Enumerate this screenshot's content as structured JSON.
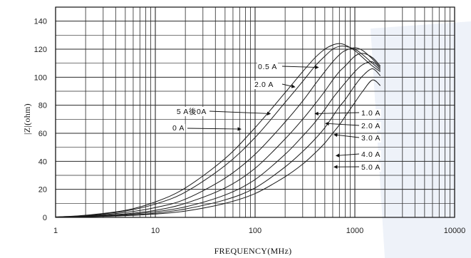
{
  "chart_data": {
    "type": "line",
    "title": "",
    "xlabel": "FREQUENCY(MHz)",
    "ylabel": "|Z|(ohm)",
    "xscale": "log",
    "xlim": [
      1,
      10000
    ],
    "ylim": [
      0,
      150
    ],
    "xticks": [
      1,
      10,
      100,
      1000,
      10000
    ],
    "xtick_labels": [
      "1",
      "10",
      "100",
      "1000",
      "10000"
    ],
    "yticks": [
      0,
      20,
      40,
      60,
      80,
      100,
      120,
      140
    ],
    "ytick_labels": [
      "0",
      "20",
      "40",
      "60",
      "80",
      "100",
      "120",
      "140"
    ],
    "grid": true,
    "legend": "none",
    "colors": {
      "line": "#1a1a1a",
      "grid": "#2a2a2a",
      "background": "#ffffff",
      "watermark": "#e8eef8"
    },
    "series": [
      {
        "name": "0 A",
        "x": [
          1,
          2,
          5,
          10,
          20,
          50,
          100,
          200,
          300,
          400,
          500,
          600,
          700,
          800,
          1000,
          1200,
          1500,
          1800
        ],
        "y": [
          0.3,
          1.5,
          5,
          11,
          21,
          42,
          64,
          89,
          104,
          114,
          120,
          123,
          124,
          123,
          119,
          114,
          108,
          104
        ]
      },
      {
        "name": "5 A後0A",
        "x": [
          1,
          2,
          5,
          10,
          20,
          50,
          100,
          200,
          300,
          400,
          500,
          600,
          700,
          800,
          1000,
          1200,
          1500,
          1800
        ],
        "y": [
          0.3,
          1.3,
          4.5,
          9.5,
          18,
          37,
          57,
          82,
          97,
          108,
          115,
          120,
          122,
          122,
          120,
          116,
          110,
          105
        ]
      },
      {
        "name": "1.0 A",
        "x": [
          1,
          2,
          5,
          10,
          20,
          50,
          100,
          200,
          300,
          400,
          500,
          600,
          700,
          800,
          1000,
          1200,
          1500,
          1800
        ],
        "y": [
          0.2,
          1,
          3.5,
          7,
          13,
          28,
          45,
          68,
          83,
          95,
          104,
          111,
          116,
          119,
          121,
          119,
          113,
          107
        ]
      },
      {
        "name": "2.0 A",
        "x": [
          1,
          2,
          5,
          10,
          20,
          50,
          100,
          200,
          300,
          400,
          500,
          600,
          700,
          800,
          1000,
          1200,
          1500,
          1800
        ],
        "y": [
          0.2,
          0.8,
          2.5,
          5,
          10,
          21,
          35,
          56,
          70,
          81,
          90,
          98,
          104,
          108,
          115,
          117,
          114,
          108
        ]
      },
      {
        "name": "3.0 A",
        "x": [
          1,
          2,
          5,
          10,
          20,
          50,
          100,
          200,
          300,
          400,
          500,
          600,
          700,
          800,
          1000,
          1200,
          1500,
          1800
        ],
        "y": [
          0.2,
          0.6,
          2,
          4,
          7.5,
          16,
          27,
          45,
          58,
          68,
          77,
          85,
          91,
          96,
          104,
          109,
          111,
          106
        ]
      },
      {
        "name": "4.0 A",
        "x": [
          1,
          2,
          5,
          10,
          20,
          50,
          100,
          200,
          300,
          400,
          500,
          600,
          700,
          800,
          1000,
          1200,
          1500,
          1800
        ],
        "y": [
          0.1,
          0.5,
          1.5,
          3,
          6,
          12.5,
          21,
          36,
          47,
          56,
          64,
          72,
          79,
          84,
          94,
          101,
          106,
          101
        ]
      },
      {
        "name": "5.0 A",
        "x": [
          1,
          2,
          5,
          10,
          20,
          50,
          100,
          200,
          300,
          400,
          500,
          600,
          700,
          800,
          1000,
          1200,
          1500,
          1800
        ],
        "y": [
          0.1,
          0.4,
          1.2,
          2.4,
          4.5,
          10,
          17,
          29,
          38,
          46,
          53,
          60,
          66,
          72,
          82,
          90,
          98,
          94
        ]
      }
    ],
    "annotations": [
      {
        "text": "0.5 A",
        "points_to": [
          430,
          107
        ]
      },
      {
        "text": "2.0 A",
        "points_to": [
          250,
          93
        ]
      },
      {
        "text": "5 A後0A",
        "points_to": [
          142,
          74
        ]
      },
      {
        "text": "0 A",
        "points_to": [
          72,
          63
        ]
      },
      {
        "text": "1.0 A",
        "points_to": [
          400,
          74
        ]
      },
      {
        "text": "2.0 A",
        "points_to": [
          510,
          67
        ]
      },
      {
        "text": "3.0 A",
        "points_to": [
          620,
          59
        ]
      },
      {
        "text": "4.0 A",
        "points_to": [
          650,
          44
        ]
      },
      {
        "text": "5.0 A",
        "points_to": [
          620,
          36
        ]
      }
    ]
  }
}
